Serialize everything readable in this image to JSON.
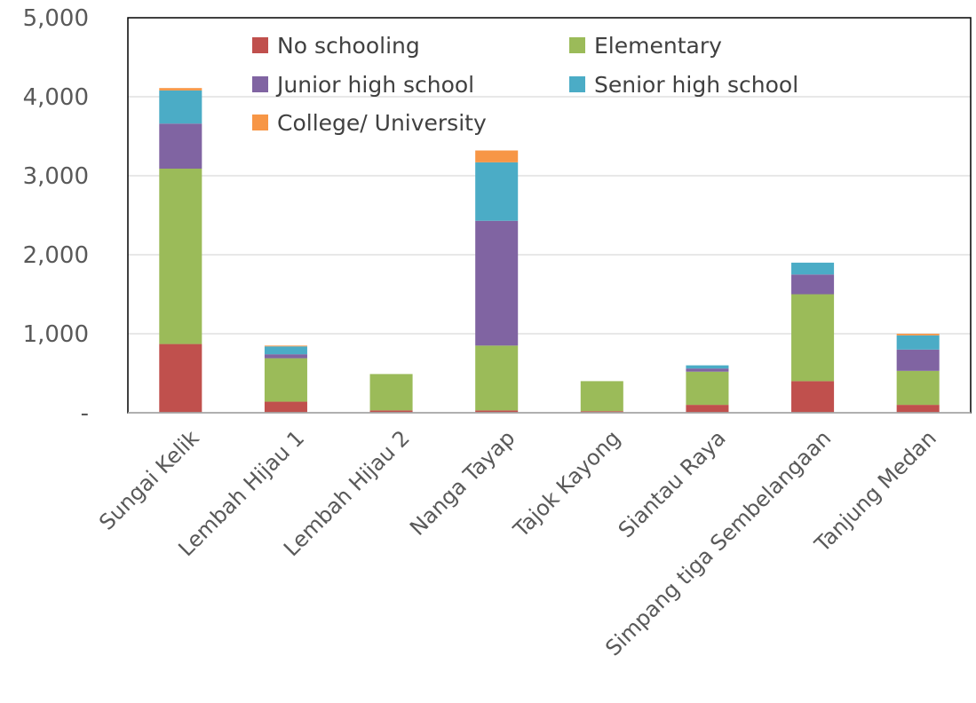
{
  "chart_data": {
    "type": "bar",
    "stacked": true,
    "categories": [
      "Sungai Kelik",
      "Lembah Hijau 1",
      "Lembah Hijau 2",
      "Nanga Tayap",
      "Tajok Kayong",
      "Siantau Raya",
      "Simpang tiga Sembelangaan",
      "Tanjung Medan"
    ],
    "series": [
      {
        "name": "No schooling",
        "color": "#c0504d",
        "values": [
          870,
          140,
          30,
          30,
          20,
          100,
          400,
          100
        ]
      },
      {
        "name": "Elementary",
        "color": "#9bbb59",
        "values": [
          2220,
          550,
          460,
          820,
          380,
          420,
          1100,
          430
        ]
      },
      {
        "name": "Junior high school",
        "color": "#8064a2",
        "values": [
          570,
          50,
          0,
          1580,
          0,
          40,
          250,
          270
        ]
      },
      {
        "name": "Senior high school",
        "color": "#4bacc6",
        "values": [
          420,
          100,
          0,
          740,
          0,
          40,
          150,
          180
        ]
      },
      {
        "name": "College/ University",
        "color": "#f79646",
        "values": [
          30,
          10,
          0,
          150,
          0,
          0,
          0,
          20
        ]
      }
    ],
    "yticks": [
      "-",
      "1,000",
      "2,000",
      "3,000",
      "4,000",
      "5,000"
    ],
    "ylim": [
      0,
      5000
    ],
    "grid": true,
    "legend_position": "top"
  }
}
